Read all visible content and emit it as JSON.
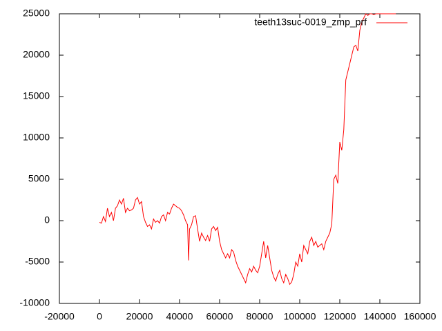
{
  "chart_data": {
    "type": "line",
    "legend_position": "top-right",
    "xlim": [
      -20000,
      160000
    ],
    "ylim": [
      -10000,
      25000
    ],
    "xticks": [
      -20000,
      0,
      20000,
      40000,
      60000,
      80000,
      100000,
      120000,
      140000,
      160000
    ],
    "yticks": [
      -10000,
      -5000,
      0,
      5000,
      10000,
      15000,
      20000,
      25000
    ],
    "x": [
      0,
      1000,
      2000,
      3000,
      4000,
      5000,
      6000,
      7000,
      8000,
      9000,
      10000,
      11000,
      12000,
      13000,
      14000,
      15000,
      16000,
      17000,
      18000,
      19000,
      20000,
      21000,
      22000,
      23000,
      24000,
      25000,
      26000,
      27000,
      28000,
      29000,
      30000,
      31000,
      32000,
      33000,
      34000,
      35000,
      36000,
      37000,
      38000,
      39000,
      40000,
      41000,
      42000,
      43000,
      44000,
      44500,
      45000,
      46000,
      47000,
      48000,
      49000,
      50000,
      51000,
      52000,
      53000,
      54000,
      55000,
      56000,
      57000,
      58000,
      59000,
      60000,
      61000,
      62000,
      63000,
      64000,
      65000,
      66000,
      67000,
      68000,
      69000,
      70000,
      71000,
      72000,
      73000,
      74000,
      75000,
      76000,
      77000,
      78000,
      79000,
      80000,
      81000,
      82000,
      83000,
      84000,
      85000,
      86000,
      87000,
      88000,
      89000,
      90000,
      91000,
      92000,
      93000,
      94000,
      95000,
      96000,
      97000,
      98000,
      99000,
      100000,
      101000,
      102000,
      103000,
      104000,
      105000,
      106000,
      107000,
      108000,
      109000,
      110000,
      111000,
      112000,
      113000,
      114000,
      115000,
      116000,
      117000,
      118000,
      119000,
      120000,
      121000,
      122000,
      123000,
      124000,
      125000,
      126000,
      127000,
      128000,
      129000,
      130000,
      131000,
      132000,
      133000,
      134000,
      135000,
      136000,
      137000,
      138000,
      140000,
      145000,
      148000
    ],
    "series": [
      {
        "name": "teeth13suc-0019_zmp_prf",
        "color": "#ff0000",
        "values": [
          -200,
          -300,
          500,
          -100,
          1500,
          500,
          1000,
          0,
          1500,
          1800,
          2500,
          2000,
          2700,
          1000,
          1500,
          1200,
          1300,
          1500,
          2500,
          2800,
          2000,
          2300,
          500,
          -200,
          -700,
          -500,
          -1000,
          200,
          -200,
          0,
          -300,
          500,
          700,
          0,
          1000,
          800,
          1500,
          2000,
          1800,
          1600,
          1500,
          1200,
          700,
          0,
          -500,
          -4800,
          -1000,
          -500,
          500,
          600,
          -1000,
          -2500,
          -1500,
          -2000,
          -2400,
          -1800,
          -2500,
          -1000,
          -700,
          -1200,
          -800,
          -2500,
          -3500,
          -4000,
          -4500,
          -4000,
          -4500,
          -3500,
          -3800,
          -4800,
          -5500,
          -6000,
          -6500,
          -7000,
          -7500,
          -6500,
          -5800,
          -6200,
          -5500,
          -6000,
          -6300,
          -5500,
          -4000,
          -2500,
          -4500,
          -3000,
          -4500,
          -6000,
          -6800,
          -7300,
          -6500,
          -6000,
          -7000,
          -7500,
          -6500,
          -7000,
          -7700,
          -7400,
          -6500,
          -5000,
          -5500,
          -4000,
          -5000,
          -3000,
          -3500,
          -4000,
          -2500,
          -2000,
          -3000,
          -2500,
          -3200,
          -3000,
          -2800,
          -3500,
          -2500,
          -2000,
          -1500,
          -400,
          5000,
          5500,
          4500,
          9500,
          8500,
          11000,
          17000,
          18000,
          19000,
          20000,
          21000,
          21200,
          20500,
          23000,
          24000,
          24500,
          25000,
          24800,
          25000,
          25000,
          24900,
          25000,
          25000,
          25000,
          25000
        ]
      }
    ]
  }
}
